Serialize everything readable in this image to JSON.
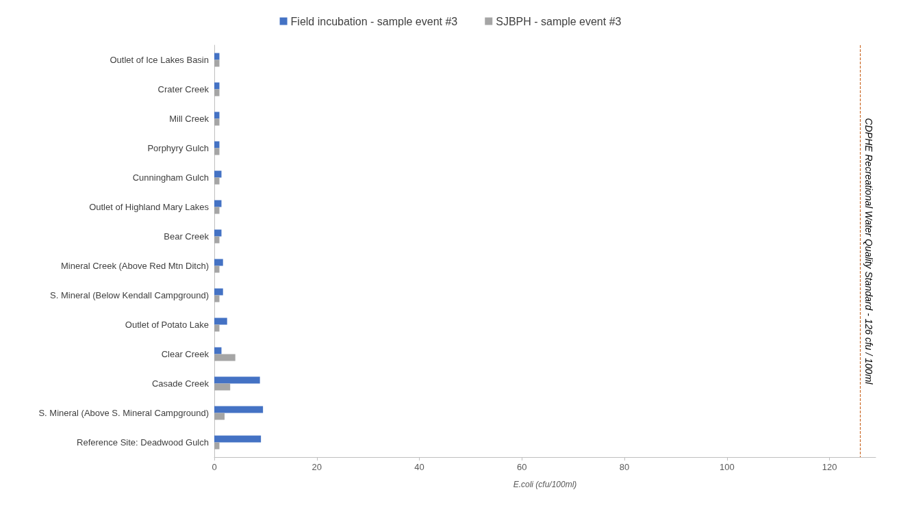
{
  "chart_data": {
    "type": "bar",
    "orientation": "horizontal",
    "xlabel": "E.coli (cfu/100ml)",
    "categories": [
      "Outlet of Ice Lakes Basin",
      "Crater Creek",
      "Mill Creek",
      "Porphyry Gulch",
      "Cunningham Gulch",
      "Outlet of Highland Mary Lakes",
      "Bear Creek",
      "Mineral Creek (Above Red Mtn Ditch)",
      "S. Mineral (Below Kendall Campground)",
      "Outlet of Potato Lake",
      "Clear Creek",
      "Casade Creek",
      "S. Mineral (Above S. Mineral Campground)",
      "Reference Site: Deadwood Gulch"
    ],
    "series": [
      {
        "name": "Field incubation - sample event #3",
        "color": "#4472c4",
        "values": [
          1.0,
          1.0,
          1.0,
          1.0,
          1.4,
          1.4,
          1.4,
          1.7,
          1.7,
          2.5,
          1.4,
          8.9,
          9.5,
          9.1
        ]
      },
      {
        "name": "SJBPH - sample event #3",
        "color": "#a5a5a5",
        "values": [
          1.0,
          1.0,
          1.0,
          1.0,
          1.0,
          1.0,
          1.0,
          1.0,
          1.0,
          1.0,
          4.1,
          3.1,
          2.0,
          1.0
        ]
      }
    ],
    "xlim": [
      0,
      129
    ],
    "xticks": [
      0,
      20,
      40,
      60,
      80,
      100,
      120
    ],
    "ref_lines": [
      {
        "axis": "x",
        "value": 126,
        "label": "CDPHE Recreational Water Quality Standard - 126 cfu / 100ml",
        "color": "#c55a11",
        "line_style": "dashed"
      }
    ],
    "grid": false,
    "legend": "top"
  }
}
